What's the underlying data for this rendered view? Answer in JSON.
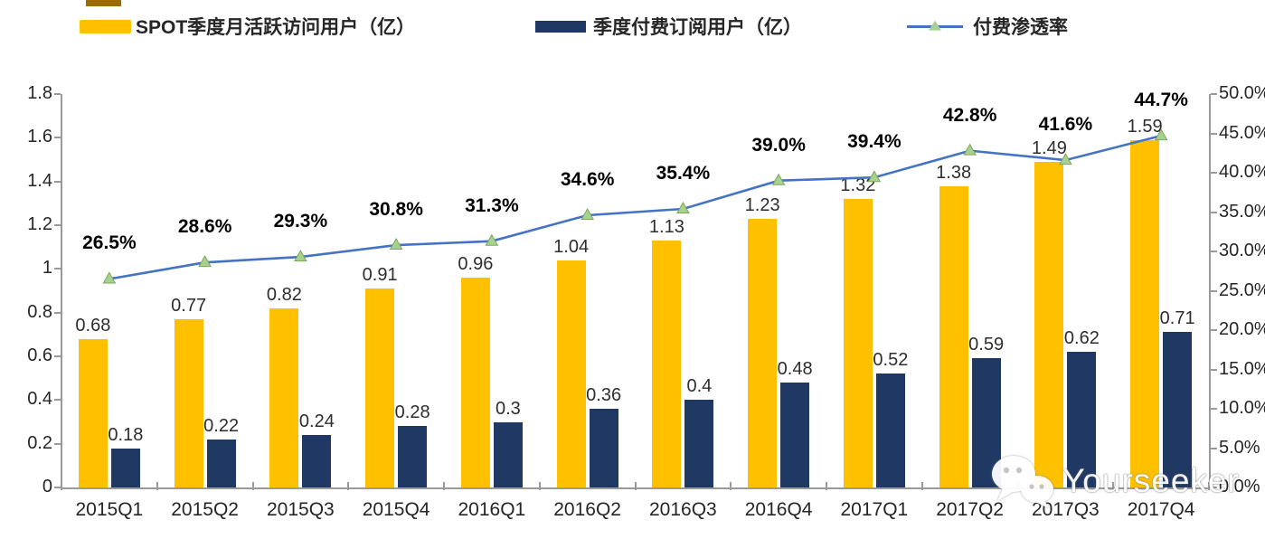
{
  "legend": {
    "items": [
      {
        "label": "SPOT季度月活跃访问用户（亿）",
        "swatch": "yellow-bar-swatch",
        "color": "#FFC000"
      },
      {
        "label": "季度付费订阅用户（亿）",
        "swatch": "navy-bar-swatch",
        "color": "#1F3864"
      },
      {
        "label": "付费渗透率",
        "swatch": "line-with-triangle-marker",
        "color": "#4472C4",
        "marker_color": "#A9D18E"
      }
    ]
  },
  "watermark": {
    "text": "Yourseeker",
    "icon": "wechat-icon"
  },
  "colors": {
    "mau_bar": "#FFC000",
    "subs_bar": "#1F3864",
    "penetration_line": "#4472C4",
    "marker_fill": "#A9D18E",
    "marker_edge": "#7CA75C",
    "axis": "#9a9a9a",
    "artifact": "#9B6A00"
  },
  "chart_data": {
    "type": "bar",
    "subtype": "grouped-bars-with-line-overlay",
    "title": "",
    "categories": [
      "2015Q1",
      "2015Q2",
      "2015Q3",
      "2015Q4",
      "2016Q1",
      "2016Q2",
      "2016Q3",
      "2016Q4",
      "2017Q1",
      "2017Q2",
      "2017Q3",
      "2017Q4"
    ],
    "series": [
      {
        "name": "SPOT季度月活跃访问用户（亿）",
        "type": "bar",
        "axis": "left",
        "color": "#FFC000",
        "values": [
          0.68,
          0.77,
          0.82,
          0.91,
          0.96,
          1.04,
          1.13,
          1.23,
          1.32,
          1.38,
          1.49,
          1.59
        ],
        "labels": [
          "0.68",
          "0.77",
          "0.82",
          "0.91",
          "0.96",
          "1.04",
          "1.13",
          "1.23",
          "1.32",
          "1.38",
          "1.49",
          "1.59"
        ]
      },
      {
        "name": "季度付费订阅用户（亿）",
        "type": "bar",
        "axis": "left",
        "color": "#1F3864",
        "values": [
          0.18,
          0.22,
          0.24,
          0.28,
          0.3,
          0.36,
          0.4,
          0.48,
          0.52,
          0.59,
          0.62,
          0.71
        ],
        "labels": [
          "0.18",
          "0.22",
          "0.24",
          "0.28",
          "0.3",
          "0.36",
          "0.4",
          "0.48",
          "0.52",
          "0.59",
          "0.62",
          "0.71"
        ]
      },
      {
        "name": "付费渗透率",
        "type": "line",
        "axis": "right",
        "color": "#4472C4",
        "marker": "triangle",
        "marker_color": "#A9D18E",
        "values": [
          26.5,
          28.6,
          29.3,
          30.8,
          31.3,
          34.6,
          35.4,
          39.0,
          39.4,
          42.8,
          41.6,
          44.7
        ],
        "labels": [
          "26.5%",
          "28.6%",
          "29.3%",
          "30.8%",
          "31.3%",
          "34.6%",
          "35.4%",
          "39.0%",
          "39.4%",
          "42.8%",
          "41.6%",
          "44.7%"
        ]
      }
    ],
    "left_axis": {
      "min": 0,
      "max": 1.8,
      "ticks": [
        "0",
        "0.2",
        "0.4",
        "0.6",
        "0.8",
        "1",
        "1.2",
        "1.4",
        "1.6",
        "1.8"
      ]
    },
    "right_axis": {
      "min": 0,
      "max": 50,
      "ticks": [
        "0.0%",
        "5.0%",
        "10.0%",
        "15.0%",
        "20.0%",
        "25.0%",
        "30.0%",
        "35.0%",
        "40.0%",
        "45.0%",
        "50.0%"
      ]
    },
    "grid": false,
    "legend_position": "top"
  }
}
